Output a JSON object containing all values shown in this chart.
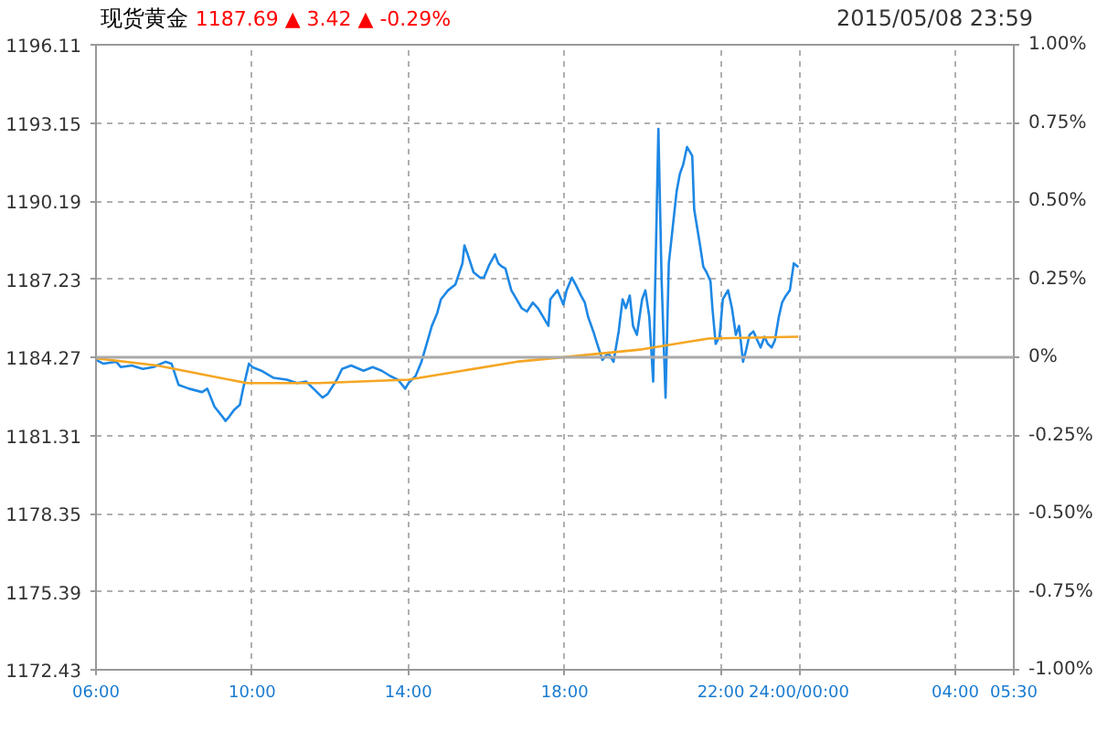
{
  "chart_data": {
    "type": "line",
    "title": "现货黄金",
    "subtitle": "1187.69 ▲ 3.42 ▲ -0.29%",
    "annotations": [
      "2015/05/08 23:59"
    ],
    "xlim": [
      "2015-05-08T06:00",
      "2015-05-09T05:30"
    ],
    "xticks": [
      {
        "value": "2015-05-08T06:00",
        "label": "06:00"
      },
      {
        "value": "2015-05-08T10:00",
        "label": "10:00"
      },
      {
        "value": "2015-05-08T14:00",
        "label": "14:00"
      },
      {
        "value": "2015-05-08T18:00",
        "label": "18:00"
      },
      {
        "value": "2015-05-08T22:00",
        "label": "22:00"
      },
      {
        "value": "2015-05-09T00:00",
        "label": "24:00/00:00"
      },
      {
        "value": "2015-05-09T04:00",
        "label": "04:00"
      },
      {
        "value": "2015-05-09T05:30",
        "label": "05:30"
      }
    ],
    "ylim": [
      1172.43,
      1196.11
    ],
    "yticks": [
      1172.43,
      1175.39,
      1178.35,
      1181.31,
      1184.27,
      1187.23,
      1190.19,
      1193.15,
      1196.11
    ],
    "y2lim": [
      -1,
      1
    ],
    "y2ticks": [
      {
        "value": -1,
        "label": "-1.00%"
      },
      {
        "value": -0.75,
        "label": "-0.75%"
      },
      {
        "value": -0.5,
        "label": "-0.50%"
      },
      {
        "value": -0.25,
        "label": "-0.25%"
      },
      {
        "value": 0,
        "label": "0%"
      },
      {
        "value": 0.25,
        "label": "0.25%"
      },
      {
        "value": 0.5,
        "label": "0.50%"
      },
      {
        "value": 0.75,
        "label": "0.75%"
      },
      {
        "value": 1,
        "label": "1.00%"
      }
    ],
    "grid": true,
    "marker": "none",
    "line_style": "solid",
    "ref_lines": [
      {
        "axis": "y",
        "value": 1184.27,
        "color": "#aaaaaa"
      }
    ],
    "series": [
      {
        "color": "#1e88e5",
        "x": [
          "2015-05-08T06:00",
          "2015-05-08T06:11",
          "2015-05-08T06:31",
          "2015-05-08T06:38",
          "2015-05-08T06:55",
          "2015-05-08T07:12",
          "2015-05-08T07:28",
          "2015-05-08T07:47",
          "2015-05-08T07:56",
          "2015-05-08T08:07",
          "2015-05-08T08:23",
          "2015-05-08T08:43",
          "2015-05-08T08:51",
          "2015-05-08T09:02",
          "2015-05-08T09:13",
          "2015-05-08T09:19",
          "2015-05-08T09:24",
          "2015-05-08T09:32",
          "2015-05-08T09:41",
          "2015-05-08T09:46",
          "2015-05-08T09:55",
          "2015-05-08T10:00",
          "2015-05-08T10:14",
          "2015-05-08T10:33",
          "2015-05-08T10:53",
          "2015-05-08T11:09",
          "2015-05-08T11:23",
          "2015-05-08T11:37",
          "2015-05-08T11:48",
          "2015-05-08T11:56",
          "2015-05-08T12:10",
          "2015-05-08T12:18",
          "2015-05-08T12:32",
          "2015-05-08T12:51",
          "2015-05-08T13:05",
          "2015-05-08T13:19",
          "2015-05-08T13:32",
          "2015-05-08T13:44",
          "2015-05-08T13:55",
          "2015-05-08T14:00",
          "2015-05-08T14:11",
          "2015-05-08T14:20",
          "2015-05-08T14:28",
          "2015-05-08T14:36",
          "2015-05-08T14:44",
          "2015-05-08T14:50",
          "2015-05-08T15:01",
          "2015-05-08T15:12",
          "2015-05-08T15:23",
          "2015-05-08T15:26",
          "2015-05-08T15:31",
          "2015-05-08T15:40",
          "2015-05-08T15:50",
          "2015-05-08T15:56",
          "2015-05-08T16:04",
          "2015-05-08T16:13",
          "2015-05-08T16:18",
          "2015-05-08T16:24",
          "2015-05-08T16:29",
          "2015-05-08T16:38",
          "2015-05-08T16:46",
          "2015-05-08T16:54",
          "2015-05-08T17:02",
          "2015-05-08T17:11",
          "2015-05-08T17:19",
          "2015-05-08T17:27",
          "2015-05-08T17:35",
          "2015-05-08T17:38",
          "2015-05-08T17:49",
          "2015-05-08T17:58",
          "2015-05-08T18:03",
          "2015-05-08T18:11",
          "2015-05-08T18:17",
          "2015-05-08T18:25",
          "2015-05-08T18:31",
          "2015-05-08T18:36",
          "2015-05-08T18:44",
          "2015-05-08T18:50",
          "2015-05-08T18:58",
          "2015-05-08T19:07",
          "2015-05-08T19:15",
          "2015-05-08T19:23",
          "2015-05-08T19:29",
          "2015-05-08T19:34",
          "2015-05-08T19:40",
          "2015-05-08T19:45",
          "2015-05-08T19:51",
          "2015-05-08T19:59",
          "2015-05-08T20:04",
          "2015-05-08T20:10",
          "2015-05-08T20:16",
          "2015-05-08T20:24",
          "2015-05-08T20:29",
          "2015-05-08T20:35",
          "2015-05-08T20:40",
          "2015-05-08T20:46",
          "2015-05-08T20:52",
          "2015-05-08T20:57",
          "2015-05-08T21:02",
          "2015-05-08T21:08",
          "2015-05-08T21:16",
          "2015-05-08T21:19",
          "2015-05-08T21:28",
          "2015-05-08T21:33",
          "2015-05-08T21:38",
          "2015-05-08T21:44",
          "2015-05-08T21:47",
          "2015-05-08T21:52",
          "2015-05-08T21:58",
          "2015-05-08T22:03",
          "2015-05-08T22:11",
          "2015-05-08T22:17",
          "2015-05-08T22:23",
          "2015-05-08T22:28",
          "2015-05-08T22:34",
          "2015-05-08T22:39",
          "2015-05-08T22:44",
          "2015-05-08T22:50",
          "2015-05-08T22:56",
          "2015-05-08T23:01",
          "2015-05-08T23:07",
          "2015-05-08T23:12",
          "2015-05-08T23:18",
          "2015-05-08T23:23",
          "2015-05-08T23:29",
          "2015-05-08T23:34",
          "2015-05-08T23:40",
          "2015-05-08T23:46",
          "2015-05-08T23:52",
          "2015-05-08T23:59"
        ],
        "values": [
          1184.17,
          1184.03,
          1184.1,
          1183.9,
          1183.96,
          1183.83,
          1183.9,
          1184.1,
          1184.03,
          1183.22,
          1183.08,
          1182.95,
          1183.08,
          1182.4,
          1182.06,
          1181.86,
          1182.0,
          1182.27,
          1182.47,
          1183.08,
          1184.03,
          1183.9,
          1183.76,
          1183.49,
          1183.42,
          1183.29,
          1183.35,
          1183.01,
          1182.74,
          1182.88,
          1183.42,
          1183.83,
          1183.96,
          1183.76,
          1183.9,
          1183.76,
          1183.56,
          1183.42,
          1183.08,
          1183.29,
          1183.56,
          1184.1,
          1184.78,
          1185.46,
          1185.93,
          1186.47,
          1186.81,
          1187.02,
          1187.83,
          1188.51,
          1188.17,
          1187.49,
          1187.29,
          1187.29,
          1187.76,
          1188.17,
          1187.83,
          1187.7,
          1187.63,
          1186.81,
          1186.47,
          1186.13,
          1186.0,
          1186.34,
          1186.13,
          1185.8,
          1185.46,
          1186.47,
          1186.81,
          1186.27,
          1186.81,
          1187.29,
          1187.02,
          1186.61,
          1186.34,
          1185.8,
          1185.25,
          1184.78,
          1184.17,
          1184.44,
          1184.1,
          1185.25,
          1186.47,
          1186.13,
          1186.61,
          1185.46,
          1185.12,
          1186.47,
          1186.81,
          1185.8,
          1183.35,
          1192.92,
          1187.15,
          1182.74,
          1187.83,
          1189.19,
          1190.55,
          1191.22,
          1191.56,
          1192.24,
          1191.9,
          1189.87,
          1188.51,
          1187.7,
          1187.49,
          1187.15,
          1186.13,
          1184.78,
          1185.05,
          1186.47,
          1186.81,
          1186.13,
          1185.12,
          1185.46,
          1184.1,
          1184.57,
          1185.12,
          1185.25,
          1184.91,
          1184.64,
          1185.05,
          1184.78,
          1184.64,
          1184.91,
          1185.8,
          1186.34,
          1186.61,
          1186.81,
          1187.83,
          1187.69
        ]
      },
      {
        "color": "#f5a623",
        "x": [
          "2015-05-08T06:00",
          "2015-05-08T07:34",
          "2015-05-08T08:56",
          "2015-05-08T09:52",
          "2015-05-08T11:42",
          "2015-05-08T14:00",
          "2015-05-08T15:23",
          "2015-05-08T16:46",
          "2015-05-08T17:41",
          "2015-05-08T19:59",
          "2015-05-08T21:41",
          "2015-05-08T23:59"
        ],
        "values": [
          1184.23,
          1183.96,
          1183.56,
          1183.29,
          1183.29,
          1183.42,
          1183.76,
          1184.1,
          1184.23,
          1184.57,
          1184.98,
          1185.05
        ]
      }
    ]
  }
}
